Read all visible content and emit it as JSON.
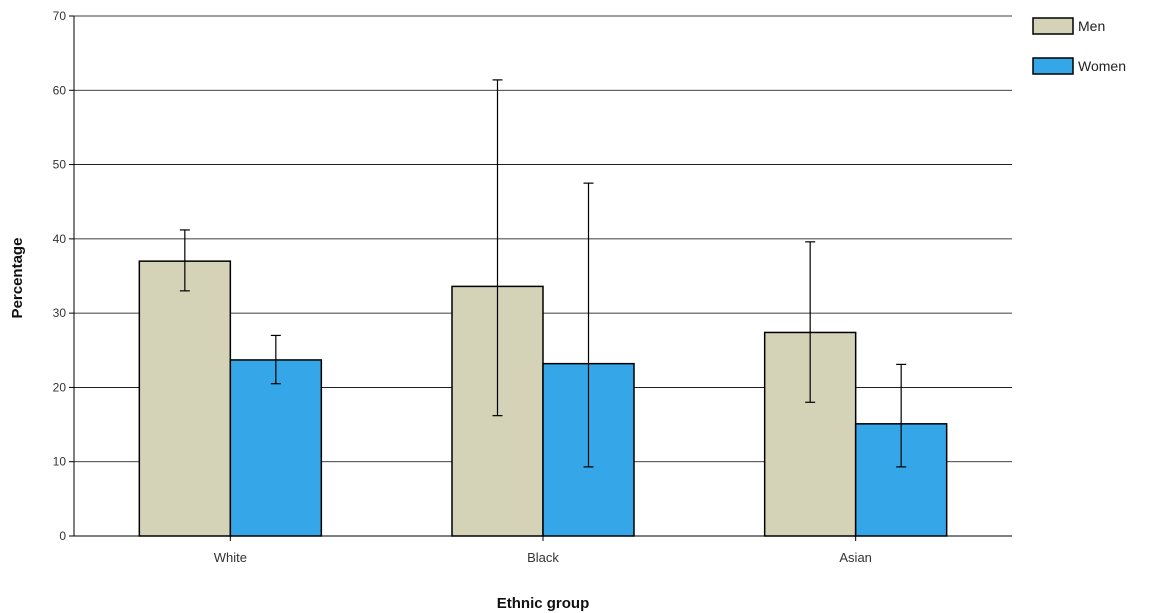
{
  "chart_data": {
    "type": "bar",
    "title": "",
    "xlabel": "Ethnic group",
    "ylabel": "Percentage",
    "ylim": [
      0,
      70
    ],
    "yticks": [
      0,
      10,
      20,
      30,
      40,
      50,
      60,
      70
    ],
    "grid": true,
    "legend_position": "top-right",
    "categories": [
      "White",
      "Black",
      "Asian"
    ],
    "series": [
      {
        "name": "Men",
        "color": "#d4d3b8",
        "values": [
          37.0,
          33.6,
          27.4
        ],
        "error_low": [
          33.0,
          16.2,
          18.0
        ],
        "error_high": [
          41.2,
          61.4,
          39.6
        ]
      },
      {
        "name": "Women",
        "color": "#35a6e8",
        "values": [
          23.7,
          23.2,
          15.1
        ],
        "error_low": [
          20.5,
          9.3,
          9.3
        ],
        "error_high": [
          27.0,
          47.5,
          23.1
        ]
      }
    ]
  }
}
